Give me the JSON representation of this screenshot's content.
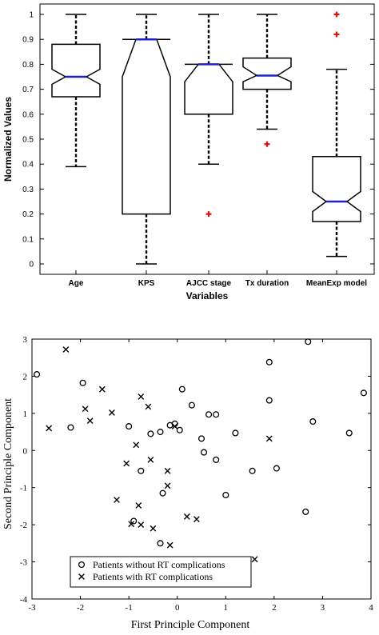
{
  "chart_data": [
    {
      "type": "boxplot",
      "xlabel": "Variables",
      "ylabel": "Normalized Values",
      "ylim": [
        0,
        1
      ],
      "yticks": [
        "0",
        "0.1",
        "0.2",
        "0.3",
        "0.4",
        "0.5",
        "0.6",
        "0.7",
        "0.8",
        "0.9",
        "1"
      ],
      "categories": [
        "Age",
        "KPS",
        "AJCC stage",
        "Tx duration",
        "MeanExp model"
      ],
      "boxes": [
        {
          "category": "Age",
          "whisker_low": 0.39,
          "q1": 0.67,
          "median": 0.75,
          "q3": 0.88,
          "whisker_high": 1.0,
          "notch_low": 0.72,
          "notch_high": 0.78,
          "outliers": []
        },
        {
          "category": "KPS",
          "whisker_low": 0.0,
          "q1": 0.2,
          "median": 0.9,
          "q3": 0.9,
          "whisker_high": 1.0,
          "notch_low": 0.75,
          "notch_high": 0.9,
          "outliers": []
        },
        {
          "category": "AJCC stage",
          "whisker_low": 0.4,
          "q1": 0.6,
          "median": 0.8,
          "q3": 0.8,
          "whisker_high": 1.0,
          "notch_low": 0.73,
          "notch_high": 0.8,
          "outliers": [
            0.2
          ]
        },
        {
          "category": "Tx duration",
          "whisker_low": 0.54,
          "q1": 0.7,
          "median": 0.755,
          "q3": 0.825,
          "whisker_high": 1.0,
          "notch_low": 0.73,
          "notch_high": 0.79,
          "outliers": [
            0.48
          ]
        },
        {
          "category": "MeanExp model",
          "whisker_low": 0.03,
          "q1": 0.17,
          "median": 0.25,
          "q3": 0.43,
          "whisker_high": 0.78,
          "notch_low": 0.21,
          "notch_high": 0.29,
          "outliers": [
            1.0,
            0.92
          ]
        }
      ],
      "colors": {
        "median": "#1f1fcc",
        "outlier": "#e01010",
        "box": "#000000"
      }
    },
    {
      "type": "scatter",
      "xlabel": "First Principle Component",
      "ylabel": "Second Principle Component",
      "xlim": [
        -3,
        4
      ],
      "ylim": [
        -4,
        3
      ],
      "xticks": [
        "-3",
        "-2",
        "-1",
        "0",
        "1",
        "2",
        "3",
        "4"
      ],
      "yticks": [
        "-4",
        "-3",
        "-2",
        "-1",
        "0",
        "1",
        "2",
        "3"
      ],
      "legend_position": "bottom-left",
      "series": [
        {
          "name": "Patients without RT complications",
          "marker": "circle",
          "points": [
            [
              -2.9,
              2.05
            ],
            [
              -2.2,
              0.62
            ],
            [
              -1.95,
              1.82
            ],
            [
              -1.0,
              0.65
            ],
            [
              -0.55,
              0.45
            ],
            [
              -0.35,
              0.5
            ],
            [
              -0.15,
              0.68
            ],
            [
              -0.05,
              0.72
            ],
            [
              0.05,
              0.55
            ],
            [
              0.1,
              1.65
            ],
            [
              0.3,
              1.22
            ],
            [
              0.5,
              0.32
            ],
            [
              0.55,
              -0.05
            ],
            [
              0.65,
              0.97
            ],
            [
              0.8,
              0.97
            ],
            [
              0.8,
              -0.25
            ],
            [
              1.2,
              0.47
            ],
            [
              1.0,
              -1.2
            ],
            [
              1.55,
              -0.55
            ],
            [
              1.9,
              2.38
            ],
            [
              1.9,
              1.35
            ],
            [
              2.05,
              -0.48
            ],
            [
              2.7,
              2.93
            ],
            [
              2.8,
              0.78
            ],
            [
              3.55,
              0.47
            ],
            [
              3.85,
              1.55
            ],
            [
              2.65,
              -1.65
            ],
            [
              -0.75,
              -0.55
            ],
            [
              -0.9,
              -1.9
            ],
            [
              -0.3,
              -1.15
            ],
            [
              -0.35,
              -2.5
            ]
          ]
        },
        {
          "name": "Patients with RT complications",
          "marker": "x",
          "points": [
            [
              -2.3,
              2.72
            ],
            [
              -2.65,
              0.6
            ],
            [
              -1.9,
              1.12
            ],
            [
              -1.8,
              0.8
            ],
            [
              -1.55,
              1.65
            ],
            [
              -1.35,
              1.02
            ],
            [
              -0.75,
              1.45
            ],
            [
              -0.6,
              1.18
            ],
            [
              -0.85,
              0.15
            ],
            [
              -1.05,
              -0.35
            ],
            [
              -0.55,
              -0.25
            ],
            [
              -1.25,
              -1.33
            ],
            [
              -0.8,
              -1.48
            ],
            [
              -0.95,
              -1.98
            ],
            [
              -0.75,
              -2.0
            ],
            [
              -0.5,
              -2.1
            ],
            [
              -0.2,
              -0.55
            ],
            [
              -0.2,
              -0.95
            ],
            [
              -0.15,
              -2.55
            ],
            [
              0.2,
              -1.78
            ],
            [
              0.4,
              -1.85
            ],
            [
              -0.05,
              0.65
            ],
            [
              1.9,
              0.32
            ],
            [
              1.6,
              -2.93
            ]
          ]
        }
      ]
    }
  ]
}
